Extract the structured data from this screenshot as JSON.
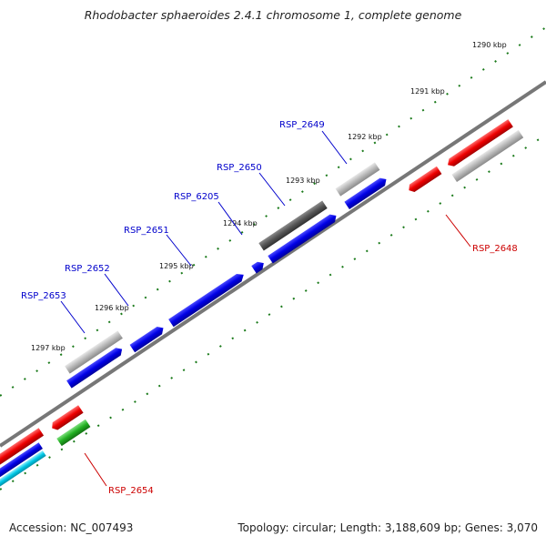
{
  "title": "Rhodobacter sphaeroides 2.4.1 chromosome 1, complete genome",
  "footer": {
    "accession": "Accession: NC_007493",
    "summary": "Topology: circular; Length: 3,188,609 bp; Genes: 3,070"
  },
  "ticks": [
    "1290 kbp",
    "1291 kbp",
    "1292 kbp",
    "1293 kbp",
    "1294 kbp",
    "1295 kbp",
    "1296 kbp",
    "1297 kbp"
  ],
  "gene_labels": {
    "RSP_2649": "RSP_2649",
    "RSP_2650": "RSP_2650",
    "RSP_6205": "RSP_6205",
    "RSP_2651": "RSP_2651",
    "RSP_2652": "RSP_2652",
    "RSP_2653": "RSP_2653",
    "RSP_2648": "RSP_2648",
    "RSP_2654": "RSP_2654"
  },
  "colors": {
    "forward_label": "#0000cc",
    "reverse_label": "#cc0000",
    "blue": "#0000e0",
    "red": "#ee0000",
    "grey": "#b4b4b4",
    "dark_grey": "#505050",
    "green": "#22aa22",
    "cyan": "#00c8e6",
    "tick": "#1a7a1a"
  }
}
